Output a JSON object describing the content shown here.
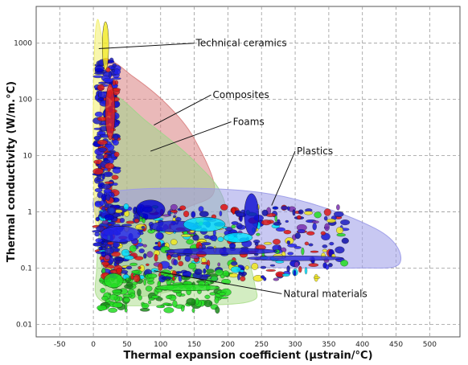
{
  "chart_data": {
    "type": "scatter",
    "title": "",
    "xlabel": "Thermal expansion coefficient (µstrain/°C)",
    "ylabel": "Thermal conductivity (W/m.°C)",
    "xlim": [
      -85,
      545
    ],
    "ylim": [
      0.006,
      4500
    ],
    "y_scale": "log",
    "grid": true,
    "x_ticks": [
      -50,
      0,
      50,
      100,
      150,
      200,
      250,
      300,
      350,
      400,
      450,
      500
    ],
    "y_ticks": [
      0.01,
      0.1,
      1,
      10,
      100,
      1000
    ],
    "y_tick_labels": [
      "0.01",
      "0.1",
      "1",
      "10",
      "100",
      "1000"
    ],
    "families": [
      {
        "name": "Technical ceramics",
        "color": "#f2ef6a",
        "label_at": [
          150,
          1000
        ],
        "leader_to": [
          8,
          800
        ],
        "envelope": [
          [
            6,
            2600
          ],
          [
            10,
            1800
          ],
          [
            14,
            800
          ],
          [
            15,
            100
          ],
          [
            12,
            10
          ],
          [
            10,
            1
          ],
          [
            6,
            0.5
          ],
          [
            2,
            1
          ],
          [
            0,
            10
          ],
          [
            0,
            100
          ],
          [
            2,
            1000
          ]
        ]
      },
      {
        "name": "Composites",
        "color": "#d98080",
        "label_at": [
          175,
          120
        ],
        "leader_to": [
          90,
          35
        ],
        "envelope": [
          [
            20,
            450
          ],
          [
            60,
            250
          ],
          [
            110,
            80
          ],
          [
            150,
            20
          ],
          [
            180,
            2.5
          ],
          [
            140,
            1.2
          ],
          [
            60,
            0.5
          ],
          [
            15,
            0.6
          ],
          [
            8,
            5
          ],
          [
            10,
            60
          ]
        ]
      },
      {
        "name": "Foams",
        "color": "#9fd58a",
        "label_at": [
          205,
          40
        ],
        "leader_to": [
          85,
          12
        ],
        "envelope": [
          [
            22,
            120
          ],
          [
            80,
            40
          ],
          [
            150,
            8
          ],
          [
            195,
            1.5
          ],
          [
            200,
            0.08
          ],
          [
            120,
            0.04
          ],
          [
            50,
            0.03
          ],
          [
            20,
            0.04
          ],
          [
            8,
            0.5
          ],
          [
            12,
            10
          ]
        ]
      },
      {
        "name": "Plastics",
        "color": "#9a9ae8",
        "label_at": [
          300,
          12
        ],
        "leader_to": [
          265,
          1.3
        ],
        "envelope": [
          [
            20,
            2.2
          ],
          [
            250,
            2.2
          ],
          [
            420,
            0.5
          ],
          [
            455,
            0.12
          ],
          [
            380,
            0.1
          ],
          [
            200,
            0.1
          ],
          [
            80,
            0.07
          ],
          [
            20,
            0.08
          ],
          [
            10,
            0.5
          ]
        ]
      },
      {
        "name": "Natural materials",
        "color": "#aedf8f",
        "label_at": [
          280,
          0.035
        ],
        "leader_to": [
          90,
          0.09
        ],
        "envelope": [
          [
            20,
            1.5
          ],
          [
            70,
            0.8
          ],
          [
            150,
            0.5
          ],
          [
            215,
            0.3
          ],
          [
            240,
            0.05
          ],
          [
            230,
            0.025
          ],
          [
            120,
            0.022
          ],
          [
            15,
            0.025
          ],
          [
            5,
            0.1
          ]
        ]
      }
    ]
  }
}
